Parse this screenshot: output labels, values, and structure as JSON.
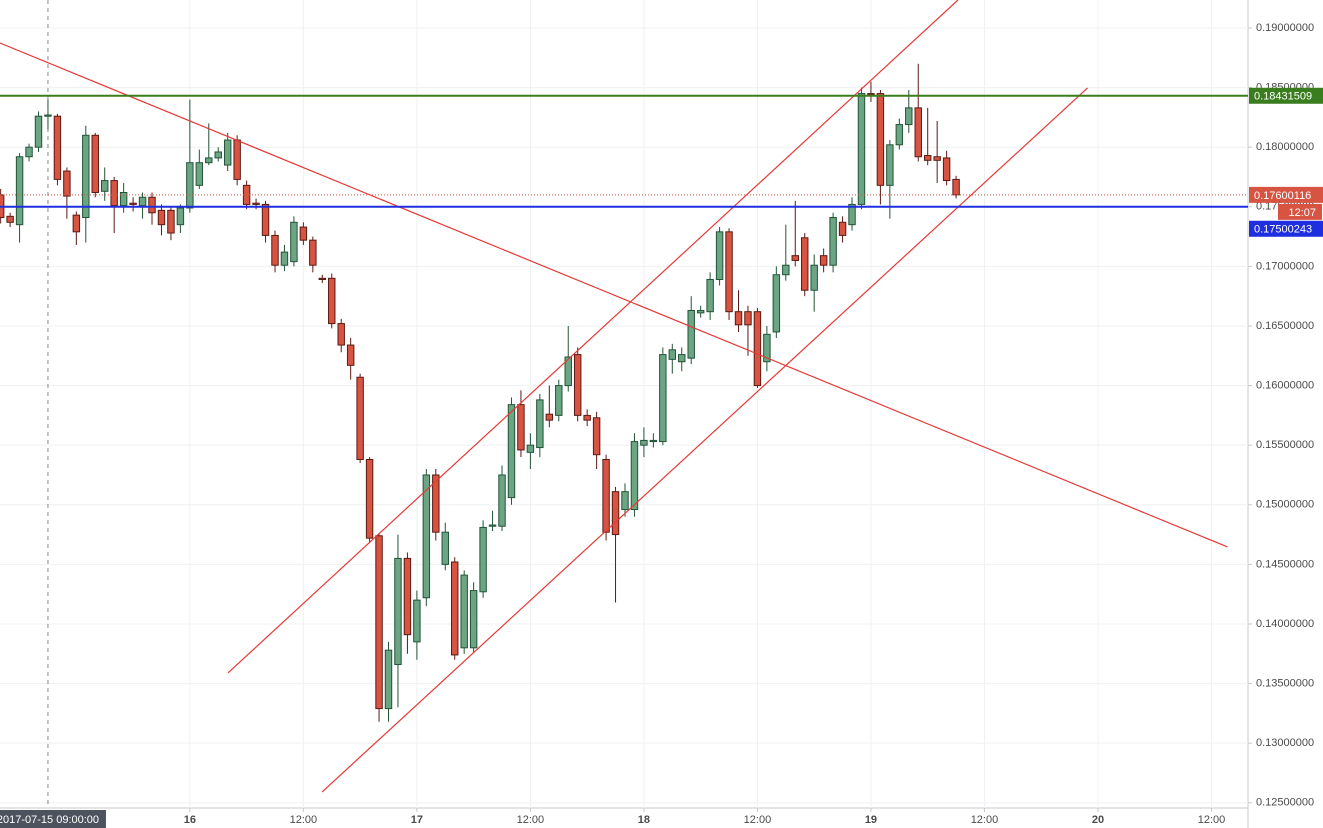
{
  "chart_data": {
    "type": "candlestick",
    "x": [
      4,
      5,
      6,
      7,
      8,
      9,
      10,
      11,
      12,
      13,
      14,
      15,
      16,
      17,
      18,
      19,
      20,
      21,
      22,
      23,
      24,
      25,
      26,
      27,
      28,
      29,
      30,
      31,
      32,
      33,
      34,
      35,
      36,
      37,
      38,
      39,
      40,
      41,
      42,
      43,
      44,
      45,
      46,
      47,
      48,
      49,
      50,
      51,
      52,
      53,
      54,
      55,
      56,
      57,
      58,
      59,
      60,
      61,
      62,
      63,
      64,
      65,
      66,
      67,
      68,
      69,
      70,
      71,
      72,
      73,
      74,
      75,
      76,
      77,
      78,
      79,
      80,
      81,
      82,
      83,
      84,
      85,
      86,
      87,
      88,
      89,
      90,
      91,
      92,
      93,
      94,
      95,
      96,
      97,
      98,
      99,
      100,
      101,
      102,
      103,
      104,
      105
    ],
    "open": [
      0.176,
      0.1742,
      0.1735,
      0.1792,
      0.18,
      0.1826,
      0.1826,
      0.178,
      0.1743,
      0.1741,
      0.181,
      0.1763,
      0.1772,
      0.1751,
      0.1753,
      0.1751,
      0.1758,
      0.1747,
      0.1747,
      0.1735,
      0.1749,
      0.1768,
      0.1787,
      0.1791,
      0.1785,
      0.1806,
      0.1768,
      0.1753,
      0.1752,
      0.1726,
      0.1701,
      0.1704,
      0.1733,
      0.1722,
      0.169,
      0.169,
      0.1652,
      0.1634,
      0.1607,
      0.1538,
      0.1474,
      0.1329,
      0.1366,
      0.1455,
      0.1385,
      0.1422,
      0.1525,
      0.145,
      0.1452,
      0.138,
      0.138,
      0.1427,
      0.1482,
      0.1482,
      0.1506,
      0.1584,
      0.1544,
      0.1548,
      0.1576,
      0.1575,
      0.16,
      0.1626,
      0.1575,
      0.1573,
      0.1538,
      0.1511,
      0.1496,
      0.1496,
      0.155,
      0.1553,
      0.1553,
      0.1622,
      0.162,
      0.1623,
      0.1661,
      0.1662,
      0.1689,
      0.1729,
      0.1662,
      0.1662,
      0.1662,
      0.162,
      0.1645,
      0.1693,
      0.1709,
      0.1724,
      0.168,
      0.1709,
      0.1701,
      0.1737,
      0.1735,
      0.1752,
      0.1845,
      0.1845,
      0.1768,
      0.1802,
      0.1819,
      0.1833,
      0.1793,
      0.1792,
      0.1791,
      0.1773
    ],
    "high": [
      0.1765,
      0.1745,
      0.1795,
      0.1803,
      0.183,
      0.184,
      0.1828,
      0.1783,
      0.1746,
      0.1818,
      0.1812,
      0.1783,
      0.1775,
      0.177,
      0.1758,
      0.1762,
      0.1762,
      0.1752,
      0.175,
      0.1752,
      0.184,
      0.1798,
      0.182,
      0.18,
      0.1812,
      0.181,
      0.1772,
      0.1757,
      0.1755,
      0.173,
      0.1718,
      0.1742,
      0.1737,
      0.1725,
      0.1693,
      0.1694,
      0.1656,
      0.164,
      0.161,
      0.154,
      0.1476,
      0.1385,
      0.1475,
      0.146,
      0.1428,
      0.153,
      0.153,
      0.1485,
      0.1456,
      0.1445,
      0.1435,
      0.1487,
      0.1495,
      0.1533,
      0.159,
      0.1596,
      0.156,
      0.1593,
      0.16,
      0.1605,
      0.165,
      0.1632,
      0.158,
      0.1578,
      0.1542,
      0.1515,
      0.1518,
      0.156,
      0.1565,
      0.156,
      0.1632,
      0.1635,
      0.1632,
      0.1675,
      0.1667,
      0.1695,
      0.1733,
      0.1732,
      0.168,
      0.1667,
      0.1665,
      0.165,
      0.17,
      0.1735,
      0.1755,
      0.1728,
      0.171,
      0.1715,
      0.1745,
      0.1742,
      0.1758,
      0.185,
      0.1855,
      0.1848,
      0.1806,
      0.1824,
      0.1848,
      0.187,
      0.1833,
      0.1822,
      0.1797,
      0.1776
    ],
    "low": [
      0.1736,
      0.1733,
      0.172,
      0.1788,
      0.1796,
      0.1815,
      0.1768,
      0.174,
      0.1718,
      0.172,
      0.1758,
      0.1755,
      0.1728,
      0.1745,
      0.1746,
      0.174,
      0.1735,
      0.1726,
      0.1722,
      0.1728,
      0.1745,
      0.1765,
      0.1785,
      0.1788,
      0.178,
      0.1768,
      0.1748,
      0.1748,
      0.172,
      0.1695,
      0.1696,
      0.17,
      0.1718,
      0.1695,
      0.1686,
      0.1648,
      0.1628,
      0.1605,
      0.1535,
      0.1468,
      0.1318,
      0.1318,
      0.133,
      0.1375,
      0.137,
      0.1415,
      0.147,
      0.1445,
      0.137,
      0.1375,
      0.1376,
      0.1422,
      0.1478,
      0.1478,
      0.15,
      0.154,
      0.153,
      0.154,
      0.1565,
      0.157,
      0.1595,
      0.157,
      0.1566,
      0.153,
      0.147,
      0.1418,
      0.149,
      0.149,
      0.154,
      0.1548,
      0.155,
      0.161,
      0.1612,
      0.1618,
      0.1657,
      0.1655,
      0.1684,
      0.1655,
      0.1645,
      0.1625,
      0.1598,
      0.1612,
      0.164,
      0.1688,
      0.17,
      0.1675,
      0.1662,
      0.1695,
      0.1695,
      0.172,
      0.173,
      0.1748,
      0.1838,
      0.1752,
      0.174,
      0.1798,
      0.1812,
      0.1788,
      0.1785,
      0.177,
      0.1768,
      0.1757
    ],
    "close": [
      0.1741,
      0.1737,
      0.1792,
      0.18,
      0.1826,
      0.1827,
      0.1773,
      0.1759,
      0.1729,
      0.181,
      0.1762,
      0.1772,
      0.1751,
      0.1762,
      0.1752,
      0.1758,
      0.1745,
      0.1735,
      0.1728,
      0.1749,
      0.1787,
      0.1787,
      0.1791,
      0.1796,
      0.1806,
      0.1773,
      0.1752,
      0.1752,
      0.1726,
      0.1701,
      0.1712,
      0.1737,
      0.1722,
      0.1701,
      0.1689,
      0.1652,
      0.1634,
      0.1617,
      0.1538,
      0.1472,
      0.1329,
      0.1378,
      0.1455,
      0.1391,
      0.142,
      0.1525,
      0.1477,
      0.1477,
      0.1374,
      0.1441,
      0.1428,
      0.1481,
      0.1483,
      0.1525,
      0.1584,
      0.1546,
      0.155,
      0.1588,
      0.1571,
      0.16,
      0.1624,
      0.1575,
      0.1571,
      0.1542,
      0.1477,
      0.1475,
      0.1511,
      0.1553,
      0.1554,
      0.1554,
      0.1626,
      0.163,
      0.1626,
      0.1663,
      0.1663,
      0.1689,
      0.1729,
      0.1662,
      0.1651,
      0.1651,
      0.16,
      0.1643,
      0.1693,
      0.1701,
      0.1705,
      0.168,
      0.1701,
      0.1701,
      0.1741,
      0.1726,
      0.1752,
      0.1845,
      0.1844,
      0.1768,
      0.1802,
      0.1819,
      0.1833,
      0.1792,
      0.1789,
      0.1789,
      0.1772,
      0.176
    ],
    "up_color": "#6ba583",
    "down_color": "#d75442",
    "xlim": [
      3.93,
      135.86
    ],
    "ylim": [
      0.12456,
      0.19235
    ],
    "xticks": [
      {
        "value": 24,
        "label": "16"
      },
      {
        "value": 36,
        "label": "12:00"
      },
      {
        "value": 48,
        "label": "17"
      },
      {
        "value": 60,
        "label": "12:00"
      },
      {
        "value": 72,
        "label": "18"
      },
      {
        "value": 84,
        "label": "12:00"
      },
      {
        "value": 96,
        "label": "19"
      },
      {
        "value": 108,
        "label": "12:00"
      },
      {
        "value": 120,
        "label": "20"
      },
      {
        "value": 132,
        "label": "12:00"
      }
    ],
    "yticks": [
      {
        "value": 0.125,
        "label": "0.12500000"
      },
      {
        "value": 0.13,
        "label": "0.13000000"
      },
      {
        "value": 0.135,
        "label": "0.13500000"
      },
      {
        "value": 0.14,
        "label": "0.14000000"
      },
      {
        "value": 0.145,
        "label": "0.14500000"
      },
      {
        "value": 0.15,
        "label": "0.15000000"
      },
      {
        "value": 0.155,
        "label": "0.15500000"
      },
      {
        "value": 0.16,
        "label": "0.16000000"
      },
      {
        "value": 0.165,
        "label": "0.16500000"
      },
      {
        "value": 0.17,
        "label": "0.17000000"
      },
      {
        "value": 0.175,
        "label": "0.17500000"
      },
      {
        "value": 0.18,
        "label": "0.18000000"
      },
      {
        "value": 0.185,
        "label": "0.18500000"
      },
      {
        "value": 0.19,
        "label": "0.19000000"
      }
    ],
    "grid": true,
    "crosshair": {
      "x": 9,
      "label": "2017-07-15 09:00:00"
    },
    "trend_lines": [
      {
        "x": [
          3.93,
          133.7
        ],
        "y": [
          0.18874,
          0.14646
        ],
        "color": "#e53935"
      },
      {
        "x": [
          28.03,
          105.2
        ],
        "y": [
          0.13589,
          0.19235
        ],
        "color": "#e53935"
      },
      {
        "x": [
          37.97,
          118.9
        ],
        "y": [
          0.1259,
          0.18497
        ],
        "color": "#e53935"
      }
    ],
    "horizontal_lines": [
      {
        "value": 0.18431509,
        "color": "#3a7d1e"
      },
      {
        "value": 0.17500243,
        "color": "#1f2fe0"
      }
    ],
    "last_price": {
      "value": 0.17600116,
      "countdown": "12:07",
      "color": "#d75442"
    }
  }
}
